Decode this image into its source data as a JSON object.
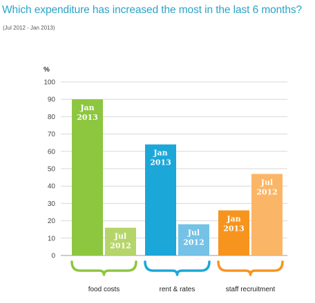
{
  "chart_data": {
    "type": "bar",
    "title": "Which expenditure has increased the most in the last 6 months?",
    "subtitle": "(Jul 2012 - Jan 2013)",
    "ylabel": "%",
    "ylim": [
      0,
      100
    ],
    "yticks": [
      0,
      10,
      20,
      30,
      40,
      50,
      60,
      70,
      80,
      90,
      100
    ],
    "grid": true,
    "categories": [
      "food costs",
      "rent & rates",
      "staff recruitment"
    ],
    "groups": [
      {
        "category": "food costs",
        "bars": [
          {
            "label": [
              "Jan",
              "2013"
            ],
            "value": 90,
            "color": "#8dc63f"
          },
          {
            "label": [
              "Jul",
              "2012"
            ],
            "value": 16,
            "color": "#b5d56a"
          }
        ]
      },
      {
        "category": "rent & rates",
        "bars": [
          {
            "label": [
              "Jan",
              "2013"
            ],
            "value": 64,
            "color": "#1ca7d9"
          },
          {
            "label": [
              "Jul",
              "2012"
            ],
            "value": 18,
            "color": "#74c2e6"
          }
        ]
      },
      {
        "category": "staff recruitment",
        "bars": [
          {
            "label": [
              "Jan",
              "2013"
            ],
            "value": 26,
            "color": "#f7941d"
          },
          {
            "label": [
              "Jul",
              "2012"
            ],
            "value": 47,
            "color": "#fbb566"
          }
        ]
      }
    ],
    "bracket_colors": [
      "#8dc63f",
      "#1ca7d9",
      "#f7941d"
    ]
  }
}
